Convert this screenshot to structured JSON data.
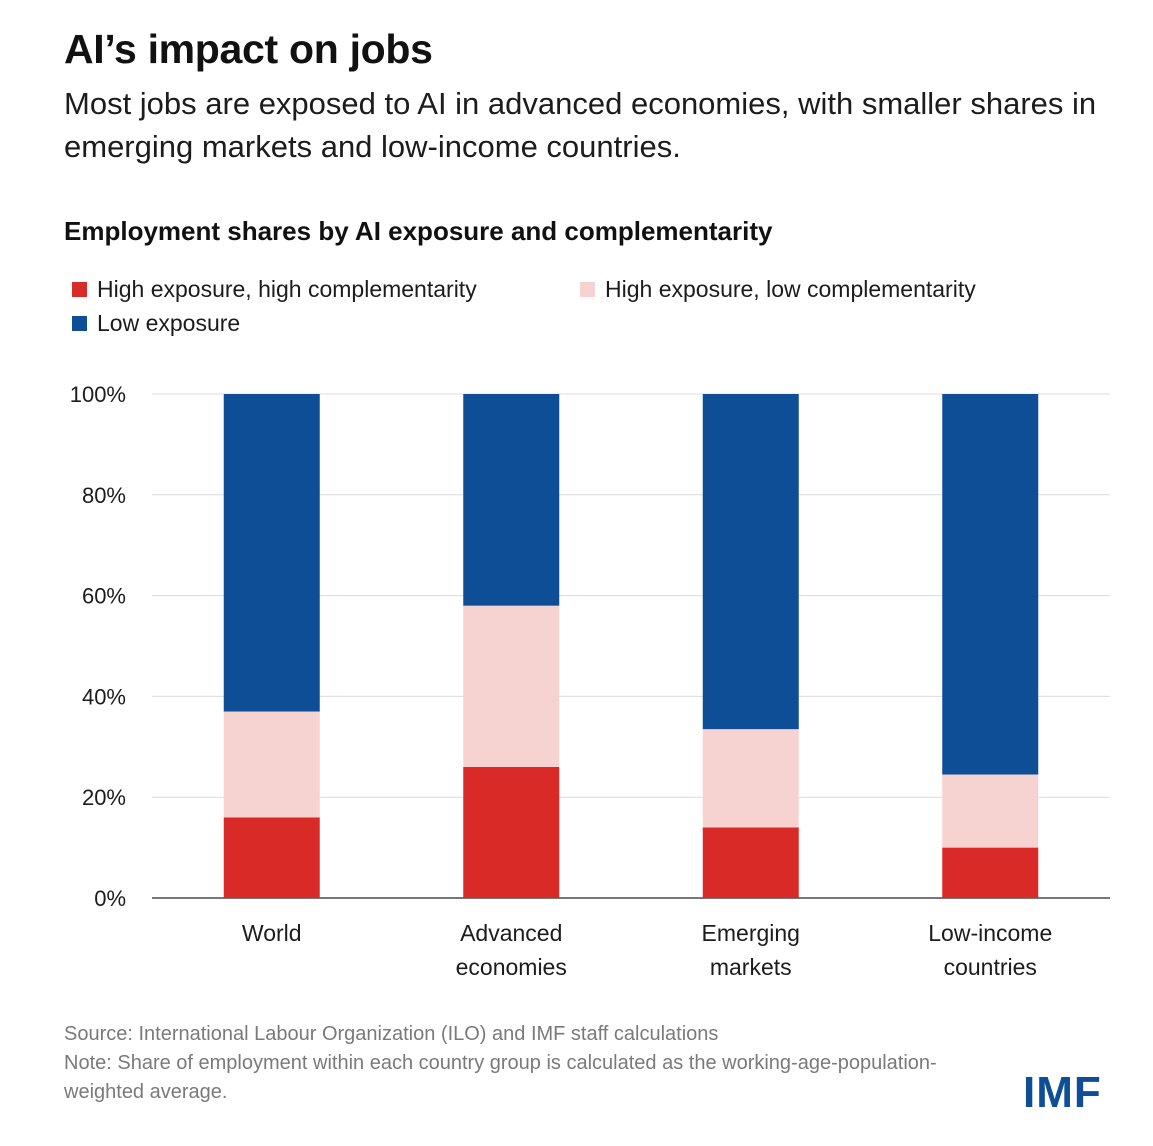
{
  "header": {
    "title": "AI’s impact on jobs",
    "subtitle": "Most jobs are exposed to AI in advanced economies, with smaller shares in emerging markets and low-income countries."
  },
  "chart_data": {
    "type": "bar",
    "stacked": true,
    "title": "Employment shares by AI exposure and complementarity",
    "categories": [
      [
        "World"
      ],
      [
        "Advanced",
        "economies"
      ],
      [
        "Emerging",
        "markets"
      ],
      [
        "Low-income",
        "countries"
      ]
    ],
    "series": [
      {
        "name": "High exposure, high complementarity",
        "color": "#d92a27",
        "values": [
          16,
          26,
          14,
          10
        ]
      },
      {
        "name": "High exposure, low complementarity",
        "color": "#f6d3d1",
        "values": [
          21,
          32,
          19.5,
          14.5
        ]
      },
      {
        "name": "Low exposure",
        "color": "#0e4e97",
        "values": [
          63,
          42,
          66.5,
          75.5
        ]
      }
    ],
    "ylim": [
      0,
      100
    ],
    "yticks": [
      0,
      20,
      40,
      60,
      80,
      100
    ],
    "ytick_labels": [
      "0%",
      "20%",
      "40%",
      "60%",
      "80%",
      "100%"
    ],
    "legend_order": [
      0,
      1,
      2
    ],
    "xlabel": "",
    "ylabel": "",
    "grid": true,
    "legend_position": "top-left"
  },
  "footer": {
    "source": "Source: International Labour Organization (ILO) and IMF staff calculations",
    "note": "Note: Share of employment within each country group is calculated as the working-age-population-weighted average."
  },
  "brand": {
    "logo_text": "IMF",
    "color": "#0e4e97"
  }
}
